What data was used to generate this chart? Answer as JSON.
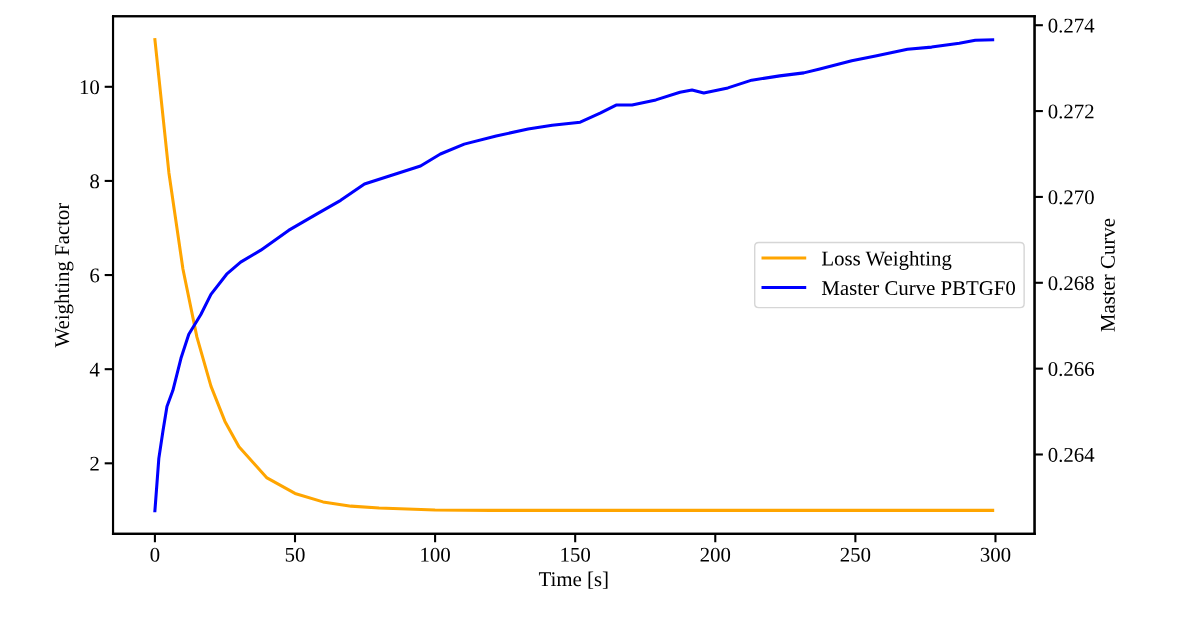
{
  "chart_data": {
    "type": "line",
    "xlabel": "Time [s]",
    "ylabel": "Weighting Factor",
    "y2label": "Master Curve",
    "xlim": [
      -14.95,
      313.95
    ],
    "xticks": [
      0,
      50,
      100,
      150,
      200,
      250,
      300
    ],
    "ylim": [
      0.5,
      11.5
    ],
    "yticks": [
      2,
      4,
      6,
      8,
      10
    ],
    "y2lim": [
      0.26215,
      0.27421
    ],
    "y2ticks": [
      0.264,
      0.266,
      0.268,
      {
        "value": 0.27,
        "label": "0.270"
      },
      0.272,
      0.274
    ],
    "legend": "center right",
    "grid": false,
    "line_style": "solid",
    "marker": "none",
    "series": [
      {
        "name": "Loss Weighting",
        "color": "#ffa500",
        "x": [
          0,
          5,
          10,
          15,
          20,
          25,
          30,
          40,
          50,
          60,
          70,
          80,
          100,
          120,
          150,
          200,
          250,
          299
        ],
        "values": [
          11,
          8.17,
          6.13,
          4.68,
          3.64,
          2.89,
          2.35,
          1.69,
          1.36,
          1.18,
          1.09,
          1.05,
          1.01,
          1.0,
          1.0,
          1.0,
          1.0,
          1.0
        ]
      },
      {
        "name": "Master Curve PBTGF0",
        "color": "#0000ff",
        "axis": "y2",
        "x": [
          0,
          1.4,
          2.9,
          4.3,
          6.4,
          9.3,
          12.1,
          16.4,
          20,
          25.6,
          30.6,
          37.8,
          47.7,
          57.7,
          66.3,
          74.8,
          83.4,
          94.8,
          101.9,
          110.4,
          121.8,
          133.2,
          141.8,
          151.8,
          158.9,
          164.6,
          170.3,
          178.8,
          187.4,
          191.7,
          195.9,
          204.5,
          213,
          223,
          231.6,
          237.3,
          248.7,
          257.2,
          268.6,
          277.2,
          287.1,
          292.8,
          299
        ],
        "values": [
          0.26269,
          0.26391,
          0.26456,
          0.26512,
          0.26549,
          0.26624,
          0.2668,
          0.26726,
          0.26773,
          0.2682,
          0.26848,
          0.26876,
          0.26922,
          0.2696,
          0.26992,
          0.2703,
          0.27048,
          0.27072,
          0.271,
          0.27123,
          0.27142,
          0.27158,
          0.27167,
          0.27174,
          0.27195,
          0.27214,
          0.27214,
          0.27226,
          0.27244,
          0.27249,
          0.27242,
          0.27254,
          0.27272,
          0.27282,
          0.27289,
          0.27298,
          0.27317,
          0.27328,
          0.27344,
          0.27349,
          0.27358,
          0.27365,
          0.27366
        ]
      }
    ]
  }
}
